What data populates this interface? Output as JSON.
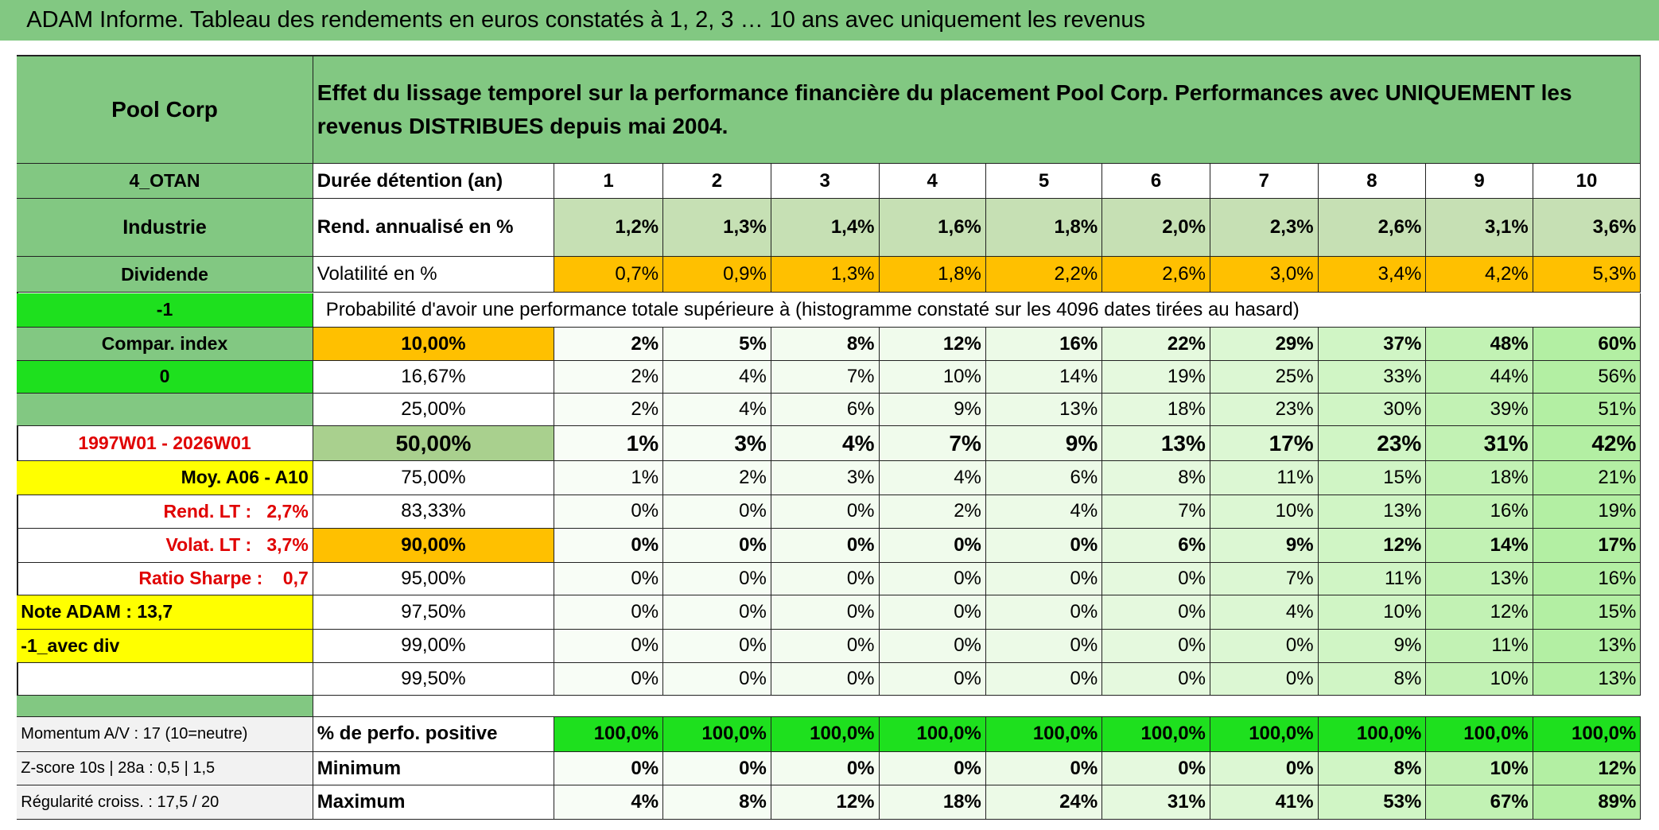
{
  "title": "ADAM Informe. Tableau des rendements en euros constatés à 1, 2, 3 … 10 ans avec uniquement les revenus",
  "header": {
    "name": "Pool Corp",
    "text": "Effet du lissage temporel sur la performance financière du placement Pool Corp. Performances avec UNIQUEMENT les revenus DISTRIBUES depuis mai 2004."
  },
  "rows": [
    {
      "left": "4_OTAN",
      "label": "Durée détention (an)",
      "cells": [
        "1",
        "2",
        "3",
        "4",
        "5",
        "6",
        "7",
        "8",
        "9",
        "10"
      ]
    },
    {
      "left": "Industrie",
      "label": "Rend. annualisé en %",
      "cells": [
        "1,2%",
        "1,3%",
        "1,4%",
        "1,6%",
        "1,8%",
        "2,0%",
        "2,3%",
        "2,6%",
        "3,1%",
        "3,6%"
      ]
    },
    {
      "left": "Dividende",
      "label": "Volatilité en %",
      "cells": [
        "0,7%",
        "0,9%",
        "1,3%",
        "1,8%",
        "2,2%",
        "2,6%",
        "3,0%",
        "3,4%",
        "4,2%",
        "5,3%"
      ]
    },
    {
      "left": "-1",
      "label": "Probabilité d'avoir une performance totale supérieure à (histogramme constaté sur les 4096 dates tirées au hasard)"
    },
    {
      "left": "Compar. index",
      "label": "10,00%",
      "cells": [
        "2%",
        "5%",
        "8%",
        "12%",
        "16%",
        "22%",
        "29%",
        "37%",
        "48%",
        "60%"
      ]
    },
    {
      "left": "0",
      "label": "16,67%",
      "cells": [
        "2%",
        "4%",
        "7%",
        "10%",
        "14%",
        "19%",
        "25%",
        "33%",
        "44%",
        "56%"
      ]
    },
    {
      "label": "25,00%",
      "cells": [
        "2%",
        "4%",
        "6%",
        "9%",
        "13%",
        "18%",
        "23%",
        "30%",
        "39%",
        "51%"
      ]
    },
    {
      "left": "1997W01 - 2026W01",
      "label": "50,00%",
      "cells": [
        "1%",
        "3%",
        "4%",
        "7%",
        "9%",
        "13%",
        "17%",
        "23%",
        "31%",
        "42%"
      ]
    },
    {
      "left": "Moy. A06 - A10",
      "label": "75,00%",
      "cells": [
        "1%",
        "2%",
        "3%",
        "4%",
        "6%",
        "8%",
        "11%",
        "15%",
        "18%",
        "21%"
      ]
    },
    {
      "left": "Rend. LT :   2,7%",
      "label": "83,33%",
      "cells": [
        "0%",
        "0%",
        "0%",
        "2%",
        "4%",
        "7%",
        "10%",
        "13%",
        "16%",
        "19%"
      ]
    },
    {
      "left": "Volat. LT :   3,7%",
      "label": "90,00%",
      "cells": [
        "0%",
        "0%",
        "0%",
        "0%",
        "0%",
        "6%",
        "9%",
        "12%",
        "14%",
        "17%"
      ]
    },
    {
      "left": "Ratio Sharpe :    0,7",
      "label": "95,00%",
      "cells": [
        "0%",
        "0%",
        "0%",
        "0%",
        "0%",
        "0%",
        "7%",
        "11%",
        "13%",
        "16%"
      ]
    },
    {
      "left": "Note ADAM : 13,7",
      "label": "97,50%",
      "cells": [
        "0%",
        "0%",
        "0%",
        "0%",
        "0%",
        "0%",
        "4%",
        "10%",
        "12%",
        "15%"
      ]
    },
    {
      "left": "-1_avec div",
      "label": "99,00%",
      "cells": [
        "0%",
        "0%",
        "0%",
        "0%",
        "0%",
        "0%",
        "0%",
        "9%",
        "11%",
        "13%"
      ]
    },
    {
      "label": "99,50%",
      "cells": [
        "0%",
        "0%",
        "0%",
        "0%",
        "0%",
        "0%",
        "0%",
        "8%",
        "10%",
        "13%"
      ]
    },
    {
      "left": "Momentum A/V : 17 (10=neutre)",
      "label": "% de perfo. positive",
      "cells": [
        "100,0%",
        "100,0%",
        "100,0%",
        "100,0%",
        "100,0%",
        "100,0%",
        "100,0%",
        "100,0%",
        "100,0%",
        "100,0%"
      ]
    },
    {
      "left": "Z-score 10s | 28a : 0,5 | 1,5",
      "label": "Minimum",
      "cells": [
        "0%",
        "0%",
        "0%",
        "0%",
        "0%",
        "0%",
        "0%",
        "8%",
        "10%",
        "12%"
      ]
    },
    {
      "left": "Régularité croiss. : 17,5 / 20",
      "label": "Maximum",
      "cells": [
        "4%",
        "8%",
        "12%",
        "18%",
        "24%",
        "31%",
        "41%",
        "53%",
        "67%",
        "89%"
      ]
    }
  ]
}
